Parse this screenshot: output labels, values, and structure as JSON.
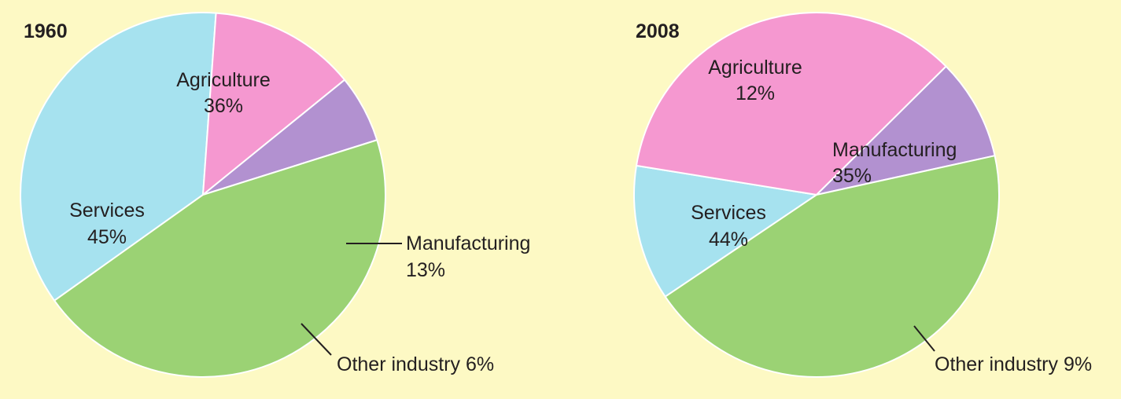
{
  "chart_data": [
    {
      "type": "pie",
      "title": "1960",
      "slices": [
        {
          "name": "Agriculture",
          "value": 36,
          "label": "Agriculture",
          "pct": "36%",
          "color": "#a6e2ef"
        },
        {
          "name": "Manufacturing",
          "value": 13,
          "label": "Manufacturing",
          "pct": "13%",
          "color": "#f598d0"
        },
        {
          "name": "Other industry",
          "value": 6,
          "label": "Other industry 6%",
          "pct": "",
          "color": "#b291d0"
        },
        {
          "name": "Services",
          "value": 45,
          "label": "Services",
          "pct": "45%",
          "color": "#9bd274"
        }
      ]
    },
    {
      "type": "pie",
      "title": "2008",
      "slices": [
        {
          "name": "Agriculture",
          "value": 12,
          "label": "Agriculture",
          "pct": "12%",
          "color": "#a6e2ef"
        },
        {
          "name": "Manufacturing",
          "value": 35,
          "label": "Manufacturing",
          "pct": "35%",
          "color": "#f598d0"
        },
        {
          "name": "Other industry",
          "value": 9,
          "label": "Other industry 9%",
          "pct": "",
          "color": "#b291d0"
        },
        {
          "name": "Services",
          "value": 44,
          "label": "Services",
          "pct": "44%",
          "color": "#9bd274"
        }
      ]
    }
  ],
  "colors": {
    "background": "#fdf9c4",
    "slice_border": "#ffffff",
    "text": "#231f20"
  }
}
